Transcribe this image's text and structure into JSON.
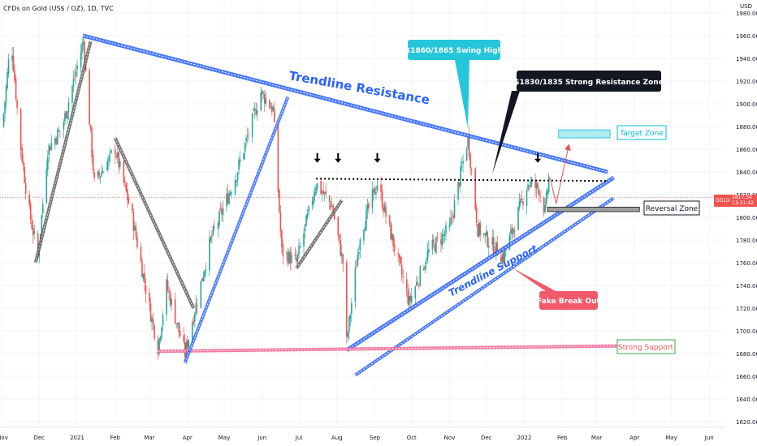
{
  "header": {
    "symbol_title": "CFDs on Gold (US$ / OZ), 1D, TVC"
  },
  "price_axis": {
    "currency": "USD"
  },
  "last_price": {
    "symbol": "GOLD",
    "price": "1817.34",
    "countdown": "13:31:42"
  },
  "colors": {
    "up": "#26a69a",
    "down": "#ef5350",
    "resistance": "#2962ff",
    "support_red": "#f06292",
    "swing_label": "#26c6da",
    "dark_label": "#131722",
    "fake_label": "#f05a6a",
    "target": "#00bcd4",
    "strong_support": "#43a047"
  },
  "chart_data": {
    "type": "candlestick",
    "ylim": [
      1610,
      1990
    ],
    "y_ticks": [
      1620,
      1640,
      1660,
      1680,
      1700,
      1720,
      1740,
      1760,
      1780,
      1800,
      1820,
      1840,
      1860,
      1880,
      1900,
      1920,
      1940,
      1960,
      1980
    ],
    "x_ticks": [
      "Nov",
      "Dec",
      "2021",
      "Feb",
      "Mar",
      "Apr",
      "May",
      "Jun",
      "Jul",
      "Aug",
      "Sep",
      "Oct",
      "Nov",
      "Dec",
      "2022",
      "Feb",
      "Mar",
      "Apr",
      "May",
      "Jun"
    ],
    "price_anchors": [
      [
        "2020-11-01",
        1880
      ],
      [
        "2020-11-08",
        1960
      ],
      [
        "2020-11-15",
        1870
      ],
      [
        "2020-11-22",
        1810
      ],
      [
        "2020-11-30",
        1765
      ],
      [
        "2020-12-08",
        1860
      ],
      [
        "2020-12-20",
        1880
      ],
      [
        "2021-01-06",
        1955
      ],
      [
        "2021-01-15",
        1830
      ],
      [
        "2021-02-01",
        1860
      ],
      [
        "2021-02-15",
        1800
      ],
      [
        "2021-03-01",
        1720
      ],
      [
        "2021-03-08",
        1685
      ],
      [
        "2021-03-15",
        1740
      ],
      [
        "2021-03-30",
        1680
      ],
      [
        "2021-04-20",
        1780
      ],
      [
        "2021-05-10",
        1835
      ],
      [
        "2021-05-31",
        1910
      ],
      [
        "2021-06-10",
        1895
      ],
      [
        "2021-06-17",
        1770
      ],
      [
        "2021-06-29",
        1760
      ],
      [
        "2021-07-15",
        1830
      ],
      [
        "2021-07-28",
        1810
      ],
      [
        "2021-08-06",
        1760
      ],
      [
        "2021-08-09",
        1690
      ],
      [
        "2021-08-20",
        1785
      ],
      [
        "2021-09-03",
        1830
      ],
      [
        "2021-09-29",
        1725
      ],
      [
        "2021-10-15",
        1770
      ],
      [
        "2021-11-01",
        1790
      ],
      [
        "2021-11-16",
        1870
      ],
      [
        "2021-11-24",
        1790
      ],
      [
        "2021-12-15",
        1765
      ],
      [
        "2022-01-04",
        1830
      ],
      [
        "2022-01-13",
        1825
      ],
      [
        "2022-01-18",
        1805
      ],
      [
        "2022-01-21",
        1835
      ]
    ],
    "trendlines": [
      {
        "name": "Trendline Resistance",
        "from": [
          "2021-01-06",
          1960
        ],
        "to": [
          "2022-03-10",
          1840
        ]
      },
      {
        "name": "Trendline Support",
        "from": [
          "2021-08-09",
          1683
        ],
        "to": [
          "2022-03-15",
          1835
        ]
      },
      {
        "name": "Parallel Support",
        "from": [
          "2021-08-16",
          1661
        ],
        "to": [
          "2022-03-15",
          1817
        ]
      },
      {
        "name": "Strong Support",
        "from": [
          "2021-03-08",
          1682
        ],
        "to": [
          "2022-04-15",
          1687
        ]
      },
      {
        "name": "Horizontal Resistance",
        "from": [
          "2021-07-15",
          1834
        ],
        "to": [
          "2022-03-10",
          1832
        ]
      }
    ],
    "zones": [
      {
        "name": "Target Zone",
        "low": 1870,
        "high": 1877
      },
      {
        "name": "Reversal Zone",
        "low": 1805,
        "high": 1809
      }
    ],
    "annotations": {
      "resistance": "Trendline Resistance",
      "support": "Trendline Support",
      "swing_high": "$1860/1865 Swing High",
      "strong_resistance": "$1830/1835 Strong Resistance Zone",
      "target": "Target Zone",
      "reversal": "Reversal Zone",
      "fake_breakout": "Fake Break Out",
      "strong_support": "Strong Support"
    }
  }
}
